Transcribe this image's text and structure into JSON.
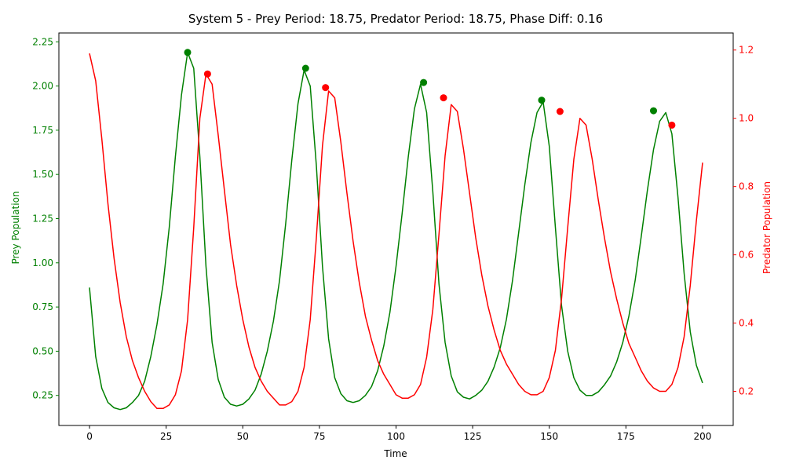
{
  "chart_data": {
    "type": "line",
    "title": "System 5 - Prey Period: 18.75, Predator Period: 18.75, Phase Diff: 0.16",
    "xlabel": "Time",
    "ylabel_left": "Prey Population",
    "ylabel_right": "Predator Population",
    "xlim": [
      -10,
      210
    ],
    "ylim_left": [
      0.08,
      2.3
    ],
    "ylim_right": [
      0.1,
      1.25
    ],
    "x_ticks": [
      0,
      25,
      50,
      75,
      100,
      125,
      150,
      175,
      200
    ],
    "y_ticks_left": [
      0.25,
      0.5,
      0.75,
      1.0,
      1.25,
      1.5,
      1.75,
      2.0,
      2.25
    ],
    "y_ticks_left_labels": [
      "0.25",
      "0.50",
      "0.75",
      "1.00",
      "1.25",
      "1.50",
      "1.75",
      "2.00",
      "2.25"
    ],
    "y_ticks_right": [
      0.2,
      0.4,
      0.6,
      0.8,
      1.0,
      1.2
    ],
    "y_ticks_right_labels": [
      "0.2",
      "0.4",
      "0.6",
      "0.8",
      "1.0",
      "1.2"
    ],
    "grid": false,
    "colors": {
      "prey": "#008000",
      "predator": "#ff0000"
    },
    "x": [
      0,
      2,
      4,
      6,
      8,
      10,
      12,
      14,
      16,
      18,
      20,
      22,
      24,
      26,
      28,
      30,
      32,
      34,
      36,
      38,
      40,
      42,
      44,
      46,
      48,
      50,
      52,
      54,
      56,
      58,
      60,
      62,
      64,
      66,
      68,
      70,
      72,
      74,
      76,
      78,
      80,
      82,
      84,
      86,
      88,
      90,
      92,
      94,
      96,
      98,
      100,
      102,
      104,
      106,
      108,
      110,
      112,
      114,
      116,
      118,
      120,
      122,
      124,
      126,
      128,
      130,
      132,
      134,
      136,
      138,
      140,
      142,
      144,
      146,
      148,
      150,
      152,
      154,
      156,
      158,
      160,
      162,
      164,
      166,
      168,
      170,
      172,
      174,
      176,
      178,
      180,
      182,
      184,
      186,
      188,
      190,
      192,
      194,
      196,
      198,
      200
    ],
    "series": [
      {
        "key": "prey",
        "axis": "left",
        "values": [
          0.86,
          0.47,
          0.29,
          0.21,
          0.18,
          0.17,
          0.18,
          0.21,
          0.25,
          0.33,
          0.47,
          0.65,
          0.88,
          1.2,
          1.6,
          1.95,
          2.19,
          2.1,
          1.6,
          0.98,
          0.55,
          0.34,
          0.24,
          0.2,
          0.19,
          0.2,
          0.23,
          0.28,
          0.37,
          0.5,
          0.67,
          0.9,
          1.22,
          1.58,
          1.9,
          2.09,
          2.0,
          1.55,
          0.98,
          0.57,
          0.35,
          0.26,
          0.22,
          0.21,
          0.22,
          0.25,
          0.3,
          0.39,
          0.53,
          0.72,
          0.98,
          1.28,
          1.6,
          1.87,
          2.01,
          1.85,
          1.4,
          0.88,
          0.55,
          0.36,
          0.27,
          0.24,
          0.23,
          0.25,
          0.28,
          0.33,
          0.41,
          0.52,
          0.68,
          0.9,
          1.17,
          1.44,
          1.68,
          1.85,
          1.91,
          1.66,
          1.2,
          0.76,
          0.5,
          0.35,
          0.28,
          0.25,
          0.25,
          0.27,
          0.31,
          0.36,
          0.44,
          0.55,
          0.7,
          0.9,
          1.15,
          1.41,
          1.64,
          1.8,
          1.85,
          1.73,
          1.37,
          0.94,
          0.61,
          0.42,
          0.32
        ]
      },
      {
        "key": "predator",
        "axis": "right",
        "values": [
          1.19,
          1.11,
          0.94,
          0.75,
          0.59,
          0.46,
          0.36,
          0.29,
          0.24,
          0.2,
          0.17,
          0.15,
          0.15,
          0.16,
          0.19,
          0.26,
          0.41,
          0.68,
          1.0,
          1.13,
          1.1,
          0.95,
          0.79,
          0.63,
          0.51,
          0.41,
          0.33,
          0.27,
          0.23,
          0.2,
          0.18,
          0.16,
          0.16,
          0.17,
          0.2,
          0.27,
          0.41,
          0.65,
          0.92,
          1.08,
          1.06,
          0.93,
          0.78,
          0.64,
          0.52,
          0.42,
          0.35,
          0.29,
          0.25,
          0.22,
          0.19,
          0.18,
          0.18,
          0.19,
          0.22,
          0.3,
          0.44,
          0.66,
          0.89,
          1.04,
          1.02,
          0.91,
          0.78,
          0.65,
          0.54,
          0.45,
          0.38,
          0.32,
          0.28,
          0.25,
          0.22,
          0.2,
          0.19,
          0.19,
          0.2,
          0.24,
          0.32,
          0.47,
          0.68,
          0.88,
          1.0,
          0.98,
          0.88,
          0.76,
          0.65,
          0.55,
          0.47,
          0.4,
          0.34,
          0.3,
          0.26,
          0.23,
          0.21,
          0.2,
          0.2,
          0.22,
          0.27,
          0.36,
          0.51,
          0.7,
          0.87
        ]
      }
    ],
    "peaks": {
      "prey": [
        [
          32,
          2.19
        ],
        [
          70.5,
          2.1
        ],
        [
          109,
          2.02
        ],
        [
          147.5,
          1.92
        ],
        [
          184,
          1.86
        ]
      ],
      "predator": [
        [
          38.5,
          1.13
        ],
        [
          77,
          1.09
        ],
        [
          115.5,
          1.06
        ],
        [
          153.5,
          1.02
        ],
        [
          190,
          0.98
        ]
      ]
    }
  }
}
